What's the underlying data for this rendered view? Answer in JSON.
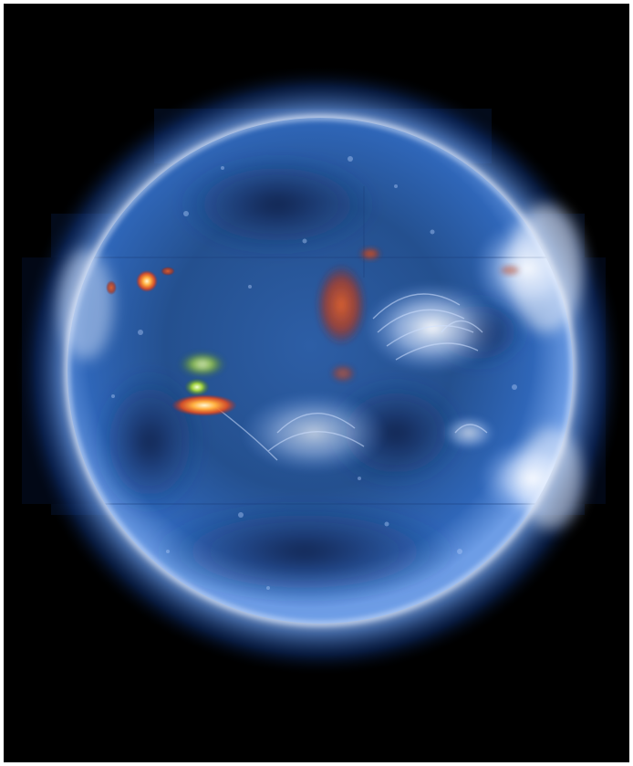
{
  "image": {
    "subject": "solar-disk-euv-composite",
    "colors": {
      "background": "#000000",
      "frame": "#ffffff",
      "disk_core": "#2c5aa0",
      "disk_dark": "#0f2550",
      "corona": "#dde8ff",
      "active_hot": "#ff7a1a",
      "active_core": "#fff3c0",
      "active_green": "#8fc23a"
    }
  }
}
